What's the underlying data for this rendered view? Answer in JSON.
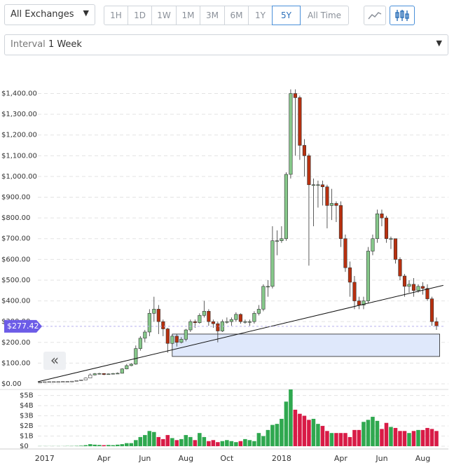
{
  "toolbar": {
    "exchange": "All Exchanges",
    "ranges": [
      "1H",
      "1D",
      "1W",
      "1M",
      "3M",
      "6M",
      "1Y",
      "5Y",
      "All Time"
    ],
    "active_range": "5Y",
    "interval_label": "Interval",
    "interval_value": "1 Week",
    "collapse": "«"
  },
  "chart_data": {
    "type": "candlestick",
    "up_color": "#86c88a",
    "down_color": "#b8300f",
    "volume_up_color": "#2fa84f",
    "volume_down_color": "#d81b46",
    "last_price": 277.42,
    "last_price_label": "$277.42",
    "x": [
      0,
      1,
      2,
      3,
      4,
      5,
      6,
      7,
      8,
      9,
      10,
      11,
      12,
      13,
      14,
      15,
      16,
      17,
      18,
      19,
      20,
      21,
      22,
      23,
      24,
      25,
      26,
      27,
      28,
      29,
      30,
      31,
      32,
      33,
      34,
      35,
      36,
      37,
      38,
      39,
      40,
      41,
      42,
      43,
      44,
      45,
      46,
      47,
      48,
      49,
      50,
      51,
      52,
      53,
      54,
      55,
      56,
      57,
      58,
      59,
      60,
      61,
      62,
      63,
      64,
      65,
      66,
      67,
      68,
      69,
      70,
      71,
      72,
      73,
      74,
      75,
      76,
      77,
      78,
      79,
      80,
      81,
      82,
      83,
      84,
      85,
      86,
      87
    ],
    "open": [
      7.5,
      8,
      10,
      10.5,
      10.6,
      10.7,
      11.3,
      11.4,
      12.8,
      16,
      19,
      28,
      43,
      49,
      50,
      45,
      48,
      50,
      51,
      72,
      88,
      95,
      170,
      220,
      250,
      340,
      360,
      300,
      265,
      195,
      230,
      200,
      215,
      260,
      300,
      295,
      330,
      350,
      300,
      290,
      255,
      300,
      300,
      310,
      335,
      300,
      300,
      300,
      340,
      360,
      470,
      470,
      690,
      690,
      700,
      1010,
      1400,
      1380,
      1150,
      1100,
      960,
      960,
      960,
      950,
      860,
      870,
      860,
      700,
      560,
      490,
      400,
      380,
      400,
      640,
      700,
      820,
      800,
      700,
      700,
      600,
      520,
      470,
      480,
      450,
      470,
      460,
      410,
      300
    ],
    "high": [
      8.5,
      10.5,
      11,
      11,
      11,
      11.8,
      12,
      13.5,
      17,
      20,
      30,
      50,
      52,
      53,
      51,
      50,
      52,
      55,
      75,
      95,
      100,
      185,
      230,
      260,
      360,
      420,
      380,
      310,
      270,
      240,
      240,
      225,
      265,
      310,
      310,
      340,
      400,
      360,
      310,
      300,
      310,
      320,
      320,
      345,
      340,
      310,
      310,
      350,
      380,
      480,
      500,
      760,
      740,
      760,
      1020,
      1420,
      1420,
      1390,
      1180,
      1110,
      990,
      980,
      980,
      960,
      940,
      880,
      880,
      720,
      590,
      520,
      420,
      420,
      660,
      720,
      840,
      840,
      810,
      710,
      700,
      610,
      530,
      500,
      510,
      480,
      490,
      480,
      420,
      320
    ],
    "low": [
      7.2,
      7.8,
      9.5,
      10,
      10.2,
      10.5,
      11,
      11.2,
      12.5,
      15.5,
      18.5,
      27,
      41,
      45,
      42,
      44,
      46,
      48,
      50,
      70,
      85,
      92,
      160,
      200,
      230,
      300,
      240,
      230,
      150,
      190,
      180,
      195,
      205,
      250,
      270,
      290,
      320,
      280,
      270,
      200,
      250,
      290,
      280,
      300,
      290,
      290,
      280,
      290,
      330,
      350,
      420,
      460,
      620,
      680,
      690,
      990,
      1100,
      1080,
      1000,
      570,
      760,
      850,
      860,
      750,
      790,
      780,
      660,
      540,
      420,
      360,
      360,
      360,
      390,
      620,
      680,
      760,
      680,
      650,
      580,
      500,
      420,
      440,
      420,
      440,
      430,
      400,
      280,
      260
    ],
    "close": [
      8,
      10,
      10.5,
      10.6,
      10.7,
      11.3,
      11.4,
      12.8,
      16,
      19,
      28,
      43,
      49,
      50,
      45,
      48,
      50,
      51,
      72,
      88,
      95,
      170,
      220,
      250,
      340,
      360,
      300,
      265,
      195,
      230,
      200,
      215,
      260,
      300,
      295,
      330,
      350,
      300,
      290,
      255,
      300,
      300,
      310,
      335,
      300,
      300,
      300,
      340,
      360,
      470,
      470,
      690,
      690,
      700,
      1010,
      1400,
      1380,
      1150,
      1100,
      960,
      960,
      960,
      950,
      860,
      870,
      860,
      700,
      560,
      490,
      400,
      380,
      400,
      640,
      700,
      820,
      800,
      700,
      700,
      600,
      520,
      470,
      480,
      450,
      470,
      460,
      410,
      300,
      280
    ],
    "volume": [
      0.01,
      0.01,
      0.01,
      0.01,
      0.01,
      0.01,
      0.02,
      0.02,
      0.03,
      0.05,
      0.1,
      0.2,
      0.15,
      0.12,
      0.1,
      0.12,
      0.1,
      0.15,
      0.2,
      0.3,
      0.3,
      0.6,
      0.9,
      1.1,
      1.5,
      1.4,
      0.9,
      0.7,
      1.1,
      0.8,
      0.6,
      0.7,
      1.1,
      0.9,
      0.6,
      1.3,
      0.9,
      0.5,
      0.6,
      0.4,
      0.5,
      0.6,
      0.5,
      0.4,
      0.5,
      0.7,
      0.6,
      0.5,
      1.3,
      1.0,
      1.6,
      2.1,
      2.2,
      2.7,
      4.4,
      5.6,
      3.6,
      3.2,
      3.0,
      2.6,
      2.7,
      2.2,
      2.0,
      1.5,
      1.3,
      1.3,
      1.3,
      1.3,
      0.9,
      1.6,
      1.6,
      2.4,
      2.6,
      2.9,
      2.5,
      1.7,
      2.3,
      1.9,
      1.8,
      1.5,
      1.5,
      1.3,
      1.5,
      1.6,
      1.6,
      1.8,
      1.7,
      1.5
    ],
    "xlim": [
      -0.5,
      89
    ],
    "xticks": [
      {
        "value": 1,
        "label": "2017"
      },
      {
        "value": 14,
        "label": "Apr"
      },
      {
        "value": 23,
        "label": "Jun"
      },
      {
        "value": 32,
        "label": "Aug"
      },
      {
        "value": 41,
        "label": "Oct"
      },
      {
        "value": 53,
        "label": "2018"
      },
      {
        "value": 66,
        "label": "Apr"
      },
      {
        "value": 75,
        "label": "Jun"
      },
      {
        "value": 84,
        "label": "Aug"
      }
    ],
    "ylim": [
      0,
      1530
    ],
    "yticks": [
      {
        "value": 0,
        "label": "$0.00"
      },
      {
        "value": 100,
        "label": "$100.00"
      },
      {
        "value": 200,
        "label": "$200.00"
      },
      {
        "value": 300,
        "label": "$300.00"
      },
      {
        "value": 400,
        "label": "$400.00"
      },
      {
        "value": 500,
        "label": "$500.00"
      },
      {
        "value": 600,
        "label": "$600.00"
      },
      {
        "value": 700,
        "label": "$700.00"
      },
      {
        "value": 800,
        "label": "$800.00"
      },
      {
        "value": 900,
        "label": "$900.00"
      },
      {
        "value": 1000,
        "label": "$1,000.00"
      },
      {
        "value": 1100,
        "label": "$1,100.00"
      },
      {
        "value": 1200,
        "label": "$1,200.00"
      },
      {
        "value": 1300,
        "label": "$1,300.00"
      },
      {
        "value": 1400,
        "label": "$1,400.00"
      }
    ],
    "volume_ylim": [
      0,
      5.6
    ],
    "volume_yticks": [
      {
        "value": 0,
        "label": "$0"
      },
      {
        "value": 1,
        "label": "$1B"
      },
      {
        "value": 2,
        "label": "$2B"
      },
      {
        "value": 3,
        "label": "$3B"
      },
      {
        "value": 4,
        "label": "$4B"
      },
      {
        "value": 5,
        "label": "$5B"
      }
    ],
    "grid": true,
    "trendline": {
      "x": [
        -0.5,
        88.5
      ],
      "y": [
        10,
        475
      ]
    },
    "zone": {
      "x": [
        29,
        87.7
      ],
      "y": [
        132,
        240
      ]
    }
  }
}
